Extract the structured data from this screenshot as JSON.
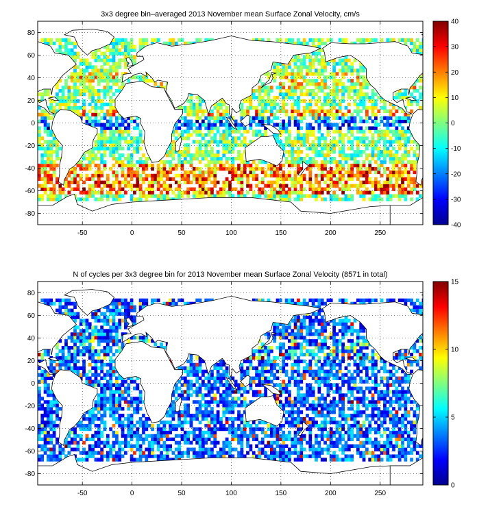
{
  "chart_data": [
    {
      "type": "heatmap",
      "title": "3x3 degree bin–averaged 2013 November mean Surface Zonal Velocity, cm/s",
      "xlim": [
        -95,
        293
      ],
      "ylim": [
        -90,
        90
      ],
      "x_ticks": [
        -50,
        0,
        50,
        100,
        150,
        200,
        250
      ],
      "y_ticks": [
        -80,
        -60,
        -40,
        -20,
        0,
        20,
        40,
        60,
        80
      ],
      "grid": "dotted",
      "bin_size_deg": 3,
      "colormap": "jet",
      "colorbar": {
        "min": -40,
        "max": 40,
        "ticks": [
          -40,
          -30,
          -20,
          -10,
          0,
          10,
          20,
          30,
          40
        ]
      }
    },
    {
      "type": "heatmap",
      "title": "N of cycles per 3x3 degree bin for 2013 November mean Surface Zonal Velocity (8571 in total)",
      "xlim": [
        -95,
        293
      ],
      "ylim": [
        -90,
        90
      ],
      "x_ticks": [
        -50,
        0,
        50,
        100,
        150,
        200,
        250
      ],
      "y_ticks": [
        -80,
        -60,
        -40,
        -20,
        0,
        20,
        40,
        60,
        80
      ],
      "grid": "dotted",
      "bin_size_deg": 3,
      "colormap": "jet",
      "colorbar": {
        "min": 0,
        "max": 15,
        "ticks": [
          0,
          5,
          10,
          15
        ]
      }
    }
  ]
}
